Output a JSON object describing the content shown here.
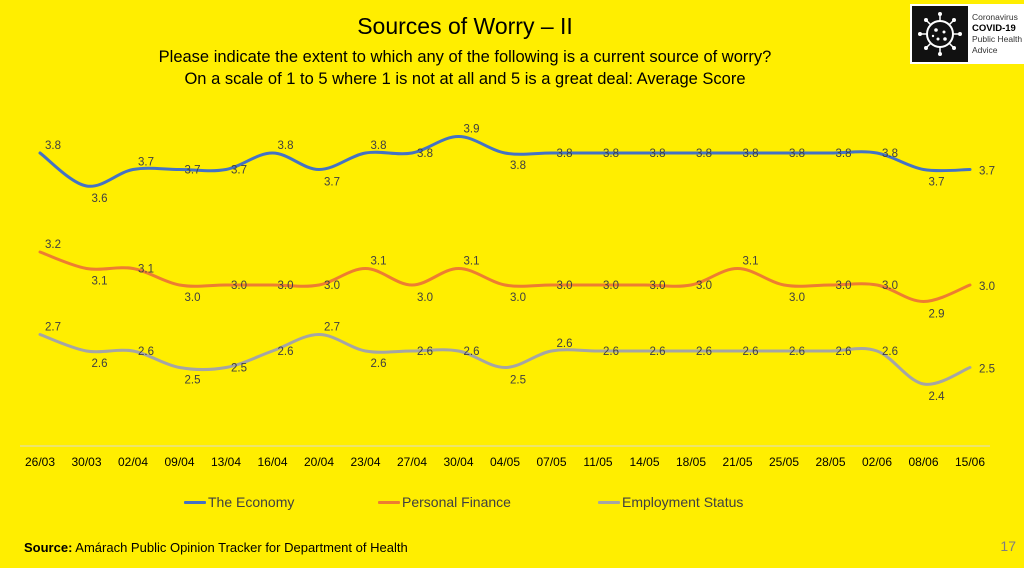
{
  "slide": {
    "title": "Sources of Worry – II",
    "subtitle_line1": "Please indicate the extent to which any of the following is a current source of worry?",
    "subtitle_line2": "On a scale of 1 to 5 where 1 is not at all and 5 is a great deal:  Average Score",
    "logo": {
      "line1": "Coronavirus",
      "line2": "COVID-19",
      "line3": "Public Health",
      "line4": "Advice",
      "icon": "virus-icon"
    },
    "source_label": "Source:",
    "source_text": " Amárach Public Opinion Tracker for Department of Health",
    "page_number": "17",
    "background_color": "#ffee00"
  },
  "chart_data": {
    "type": "line",
    "title": "Sources of Worry – II",
    "xlabel": "",
    "ylabel": "Average Score",
    "ylim": [
      1,
      5
    ],
    "grid": false,
    "legend_position": "bottom",
    "categories": [
      "26/03",
      "30/03",
      "02/04",
      "09/04",
      "13/04",
      "16/04",
      "20/04",
      "23/04",
      "27/04",
      "30/04",
      "04/05",
      "07/05",
      "11/05",
      "14/05",
      "18/05",
      "21/05",
      "25/05",
      "28/05",
      "02/06",
      "08/06",
      "15/06"
    ],
    "series": [
      {
        "name": "The Economy",
        "color": "#4472c4",
        "values": [
          3.8,
          3.6,
          3.7,
          3.7,
          3.7,
          3.8,
          3.7,
          3.8,
          3.8,
          3.9,
          3.8,
          3.8,
          3.8,
          3.8,
          3.8,
          3.8,
          3.8,
          3.8,
          3.8,
          3.7,
          3.7
        ]
      },
      {
        "name": "Personal Finance",
        "color": "#ed7d31",
        "values": [
          3.2,
          3.1,
          3.1,
          3.0,
          3.0,
          3.0,
          3.0,
          3.1,
          3.0,
          3.1,
          3.0,
          3.0,
          3.0,
          3.0,
          3.0,
          3.1,
          3.0,
          3.0,
          3.0,
          2.9,
          3.0
        ]
      },
      {
        "name": "Employment Status",
        "color": "#a5a5a5",
        "values": [
          2.7,
          2.6,
          2.6,
          2.5,
          2.5,
          2.6,
          2.7,
          2.6,
          2.6,
          2.6,
          2.5,
          2.6,
          2.6,
          2.6,
          2.6,
          2.6,
          2.6,
          2.6,
          2.6,
          2.4,
          2.5
        ]
      }
    ]
  }
}
